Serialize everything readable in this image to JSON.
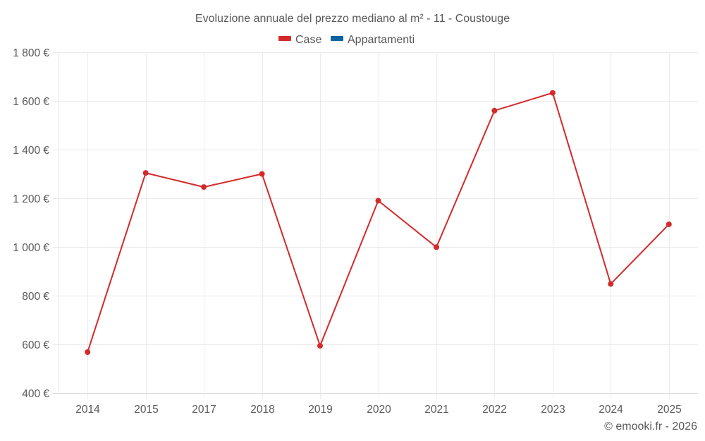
{
  "chart_data": {
    "type": "line",
    "title": "Evoluzione annuale del prezzo mediano al m² - 11 - Coustouge",
    "xlabel": "",
    "ylabel": "",
    "categories": [
      "2014",
      "2015",
      "2017",
      "2018",
      "2019",
      "2020",
      "2021",
      "2022",
      "2023",
      "2024",
      "2025"
    ],
    "series": [
      {
        "name": "Case",
        "color": "#d42a2a",
        "values": [
          568,
          1304,
          1246,
          1300,
          594,
          1190,
          999,
          1560,
          1633,
          848,
          1093
        ]
      },
      {
        "name": "Appartamenti",
        "color": "#0f63a0",
        "values": []
      }
    ],
    "ylim": [
      400,
      1800
    ],
    "yticks": [
      400,
      600,
      800,
      1000,
      1200,
      1400,
      1600,
      1800
    ],
    "ytick_labels": [
      "400 €",
      "600 €",
      "800 €",
      "1 000 €",
      "1 200 €",
      "1 400 €",
      "1 600 €",
      "1 800 €"
    ],
    "grid": true,
    "legend_position": "top"
  },
  "legend": {
    "items": [
      {
        "label": "Case",
        "color": "#d42a2a"
      },
      {
        "label": "Appartamenti",
        "color": "#0f63a0"
      }
    ]
  },
  "credit": "© emooki.fr - 2026"
}
